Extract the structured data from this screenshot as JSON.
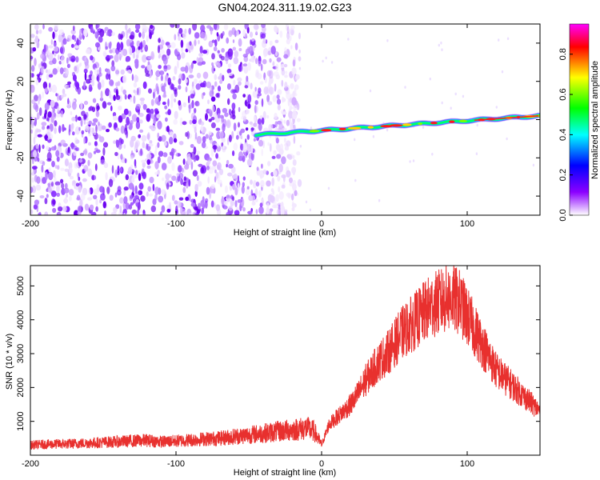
{
  "title": "GN04.2024.311.19.02.G23",
  "chart_data": [
    {
      "type": "heatmap",
      "xlabel": "Height of straight line (km)",
      "ylabel": "Frequency (Hz)",
      "xlim": [
        -200,
        150
      ],
      "ylim": [
        -50,
        50
      ],
      "xticks": [
        -200,
        -100,
        0,
        100
      ],
      "yticks": [
        -40,
        -20,
        0,
        20,
        40
      ],
      "colorbar": {
        "label": "Normalized spectral amplitude",
        "range": [
          0,
          0.95
        ],
        "ticks": [
          0.0,
          0.2,
          0.4,
          0.6,
          0.8
        ],
        "colors": [
          "#ffffff",
          "#8c00ff",
          "#0000ff",
          "#00ffff",
          "#00ff00",
          "#ffff00",
          "#ff0000",
          "#ff00ff"
        ]
      },
      "ridge": {
        "x_start": -45,
        "x_end": 150,
        "frequency_start": -8,
        "frequency_end": 2
      },
      "noise_region_x": [
        -200,
        -15
      ]
    },
    {
      "type": "line",
      "xlabel": "Height of straight line (km)",
      "ylabel": "SNR (10 * v/v)",
      "xlim": [
        -200,
        150
      ],
      "ylim": [
        0,
        5600
      ],
      "xticks": [
        -200,
        -100,
        0,
        100
      ],
      "yticks": [
        1000,
        2000,
        3000,
        4000,
        5000
      ],
      "color": "#e8302e",
      "series": [
        {
          "x": [
            -200,
            -190,
            -180,
            -170,
            -160,
            -150,
            -140,
            -130,
            -120,
            -110,
            -100,
            -90,
            -80,
            -70,
            -60,
            -50,
            -40,
            -30,
            -20,
            -10,
            -5,
            0,
            5,
            10,
            15,
            20,
            25,
            30,
            35,
            40,
            45,
            50,
            55,
            60,
            65,
            70,
            75,
            80,
            85,
            90,
            95,
            100,
            105,
            110,
            115,
            120,
            125,
            130,
            135,
            140,
            145,
            150
          ],
          "y": [
            300,
            320,
            330,
            340,
            360,
            380,
            400,
            420,
            440,
            400,
            420,
            450,
            480,
            500,
            550,
            600,
            650,
            700,
            750,
            800,
            700,
            300,
            900,
            1100,
            1300,
            1500,
            1800,
            2200,
            2500,
            2800,
            3000,
            3300,
            3600,
            3800,
            4000,
            4200,
            4400,
            4500,
            4600,
            4650,
            4500,
            4100,
            3700,
            3300,
            2900,
            2500,
            2300,
            2100,
            1900,
            1700,
            1500,
            1300
          ]
        }
      ]
    }
  ]
}
